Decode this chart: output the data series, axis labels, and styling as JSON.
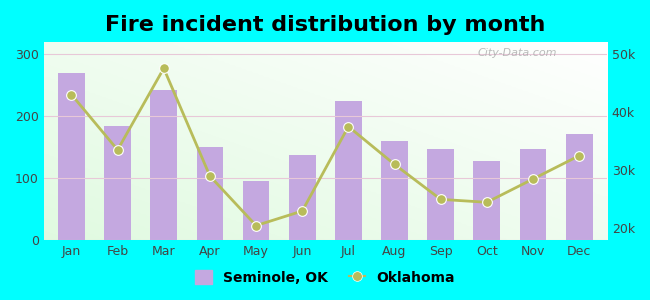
{
  "title": "Fire incident distribution by month",
  "months": [
    "Jan",
    "Feb",
    "Mar",
    "Apr",
    "May",
    "Jun",
    "Jul",
    "Aug",
    "Sep",
    "Oct",
    "Nov",
    "Dec"
  ],
  "seminole_values": [
    270,
    185,
    242,
    150,
    95,
    138,
    225,
    160,
    148,
    128,
    147,
    172
  ],
  "oklahoma_values": [
    43000,
    33500,
    47500,
    29000,
    20500,
    23000,
    37500,
    31000,
    25000,
    24500,
    28500,
    32500
  ],
  "bar_color": "#c4a8e0",
  "line_color": "#b8bc5a",
  "line_marker": "o",
  "bg_color": "#00ffff",
  "ylim_left": [
    0,
    320
  ],
  "ylim_right": [
    18000,
    52000
  ],
  "yticks_left": [
    0,
    100,
    200,
    300
  ],
  "yticks_right": [
    20000,
    30000,
    40000,
    50000
  ],
  "ytick_labels_right": [
    "20k",
    "30k",
    "40k",
    "50k"
  ],
  "legend_label_bar": "Seminole, OK",
  "legend_label_line": "Oklahoma",
  "title_fontsize": 16,
  "watermark": "City-Data.com"
}
